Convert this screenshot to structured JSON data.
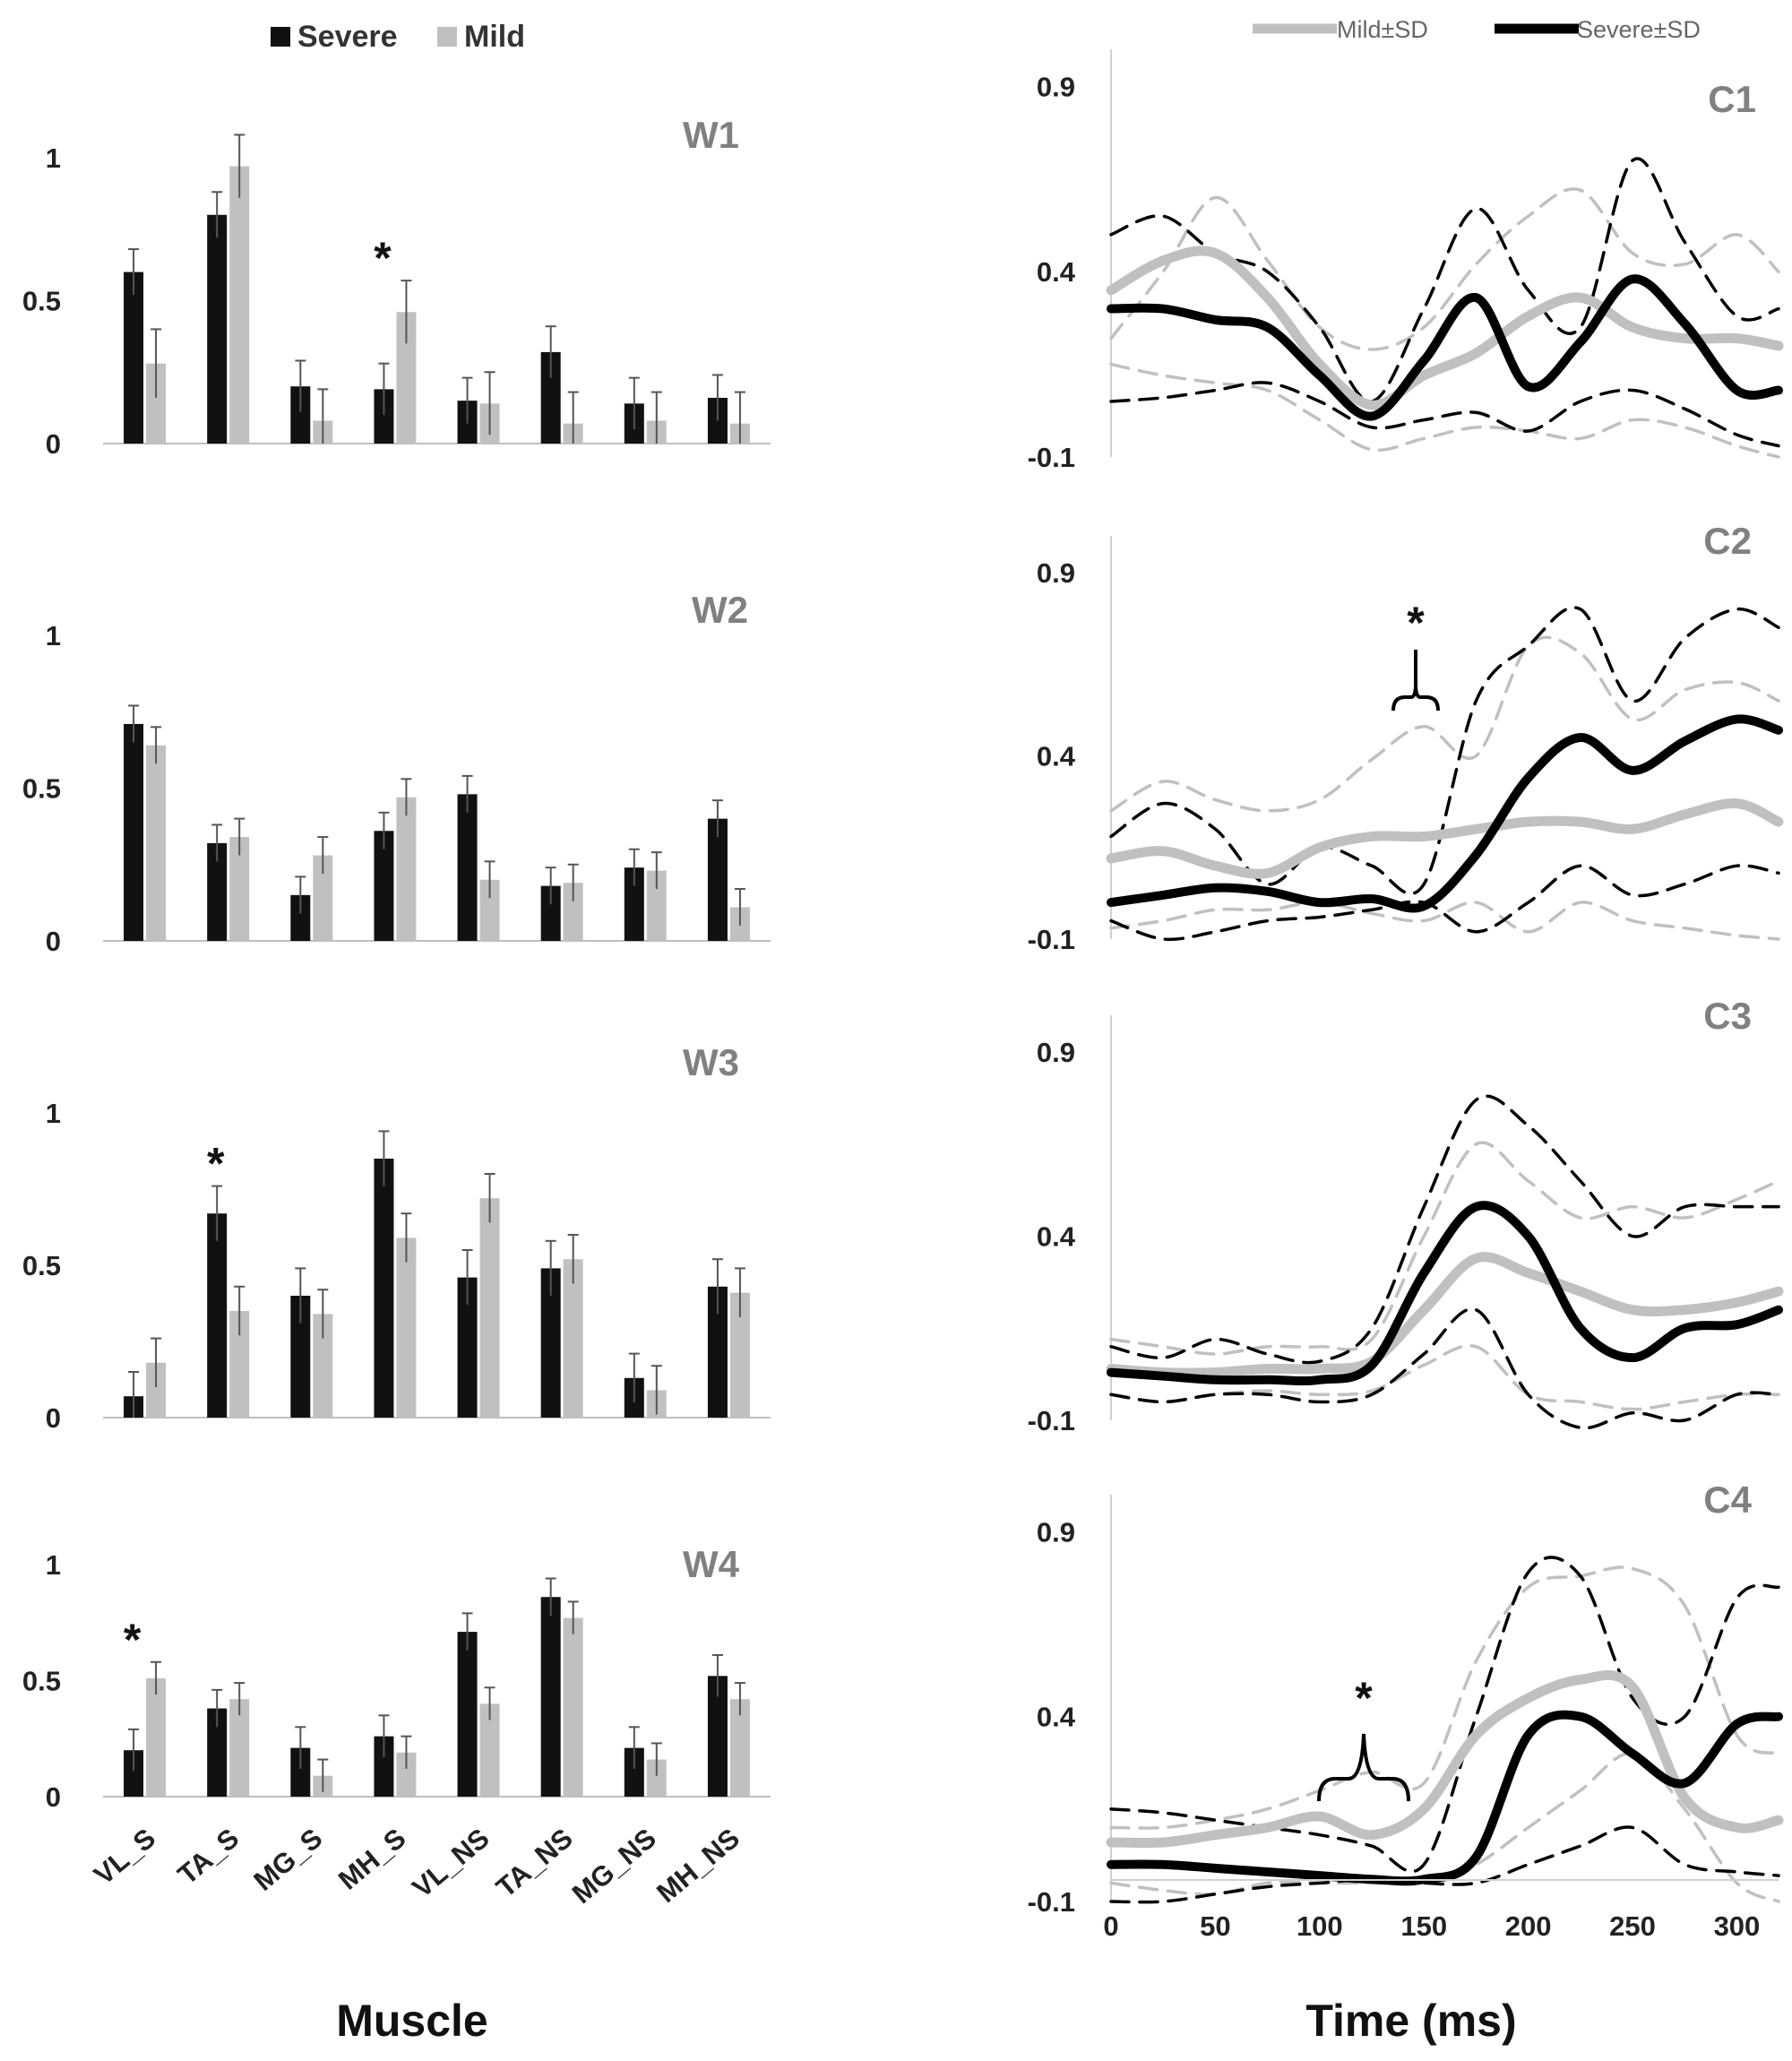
{
  "chart_data": [
    {
      "type": "bar",
      "panel": "W1",
      "categories": [
        "VL_S",
        "TA_S",
        "MG_S",
        "MH_S",
        "VL_NS",
        "TA_NS",
        "MG_NS",
        "MH_NS"
      ],
      "series": [
        {
          "name": "Severe",
          "color": "#111111",
          "values": [
            0.6,
            0.8,
            0.2,
            0.19,
            0.15,
            0.32,
            0.14,
            0.16
          ],
          "errors": [
            0.08,
            0.08,
            0.09,
            0.09,
            0.08,
            0.09,
            0.09,
            0.08
          ]
        },
        {
          "name": "Mild",
          "color": "#c0c0c0",
          "values": [
            0.28,
            0.97,
            0.08,
            0.46,
            0.14,
            0.07,
            0.08,
            0.07
          ],
          "errors": [
            0.12,
            0.11,
            0.11,
            0.11,
            0.11,
            0.11,
            0.1,
            0.11
          ]
        }
      ],
      "significant": [
        "MH_S"
      ],
      "ylim": [
        0,
        1.05
      ],
      "yticks": [
        0,
        0.5,
        1
      ],
      "ytick_labels": [
        "0",
        "0.5",
        "1"
      ]
    },
    {
      "type": "bar",
      "panel": "W2",
      "categories": [
        "VL_S",
        "TA_S",
        "MG_S",
        "MH_S",
        "VL_NS",
        "TA_NS",
        "MG_NS",
        "MH_NS"
      ],
      "series": [
        {
          "name": "Severe",
          "color": "#111111",
          "values": [
            0.71,
            0.32,
            0.15,
            0.36,
            0.48,
            0.18,
            0.24,
            0.4
          ],
          "errors": [
            0.06,
            0.06,
            0.06,
            0.06,
            0.06,
            0.06,
            0.06,
            0.06
          ]
        },
        {
          "name": "Mild",
          "color": "#c0c0c0",
          "values": [
            0.64,
            0.34,
            0.28,
            0.47,
            0.2,
            0.19,
            0.23,
            0.11
          ],
          "errors": [
            0.06,
            0.06,
            0.06,
            0.06,
            0.06,
            0.06,
            0.06,
            0.06
          ]
        }
      ],
      "significant": [],
      "ylim": [
        0,
        1.05
      ],
      "yticks": [
        0,
        0.5,
        1
      ],
      "ytick_labels": [
        "0",
        "0.5",
        "1"
      ]
    },
    {
      "type": "bar",
      "panel": "W3",
      "categories": [
        "VL_S",
        "TA_S",
        "MG_S",
        "MH_S",
        "VL_NS",
        "TA_NS",
        "MG_NS",
        "MH_NS"
      ],
      "series": [
        {
          "name": "Severe",
          "color": "#111111",
          "values": [
            0.07,
            0.67,
            0.4,
            0.85,
            0.46,
            0.49,
            0.13,
            0.43
          ],
          "errors": [
            0.08,
            0.09,
            0.09,
            0.09,
            0.09,
            0.09,
            0.08,
            0.09
          ]
        },
        {
          "name": "Mild",
          "color": "#c0c0c0",
          "values": [
            0.18,
            0.35,
            0.34,
            0.59,
            0.72,
            0.52,
            0.09,
            0.41
          ],
          "errors": [
            0.08,
            0.08,
            0.08,
            0.08,
            0.08,
            0.08,
            0.08,
            0.08
          ]
        }
      ],
      "significant": [
        "TA_S"
      ],
      "ylim": [
        0,
        1.05
      ],
      "yticks": [
        0,
        0.5,
        1
      ],
      "ytick_labels": [
        "0",
        "0.5",
        "1"
      ]
    },
    {
      "type": "bar",
      "panel": "W4",
      "categories": [
        "VL_S",
        "TA_S",
        "MG_S",
        "MH_S",
        "VL_NS",
        "TA_NS",
        "MG_NS",
        "MH_NS"
      ],
      "series": [
        {
          "name": "Severe",
          "color": "#111111",
          "values": [
            0.2,
            0.38,
            0.21,
            0.26,
            0.71,
            0.86,
            0.21,
            0.52
          ],
          "errors": [
            0.09,
            0.08,
            0.09,
            0.09,
            0.08,
            0.08,
            0.09,
            0.09
          ]
        },
        {
          "name": "Mild",
          "color": "#c0c0c0",
          "values": [
            0.51,
            0.42,
            0.09,
            0.19,
            0.4,
            0.77,
            0.16,
            0.42
          ],
          "errors": [
            0.07,
            0.07,
            0.07,
            0.07,
            0.07,
            0.07,
            0.07,
            0.07
          ]
        }
      ],
      "significant": [
        "VL_S"
      ],
      "ylim": [
        0,
        1.05
      ],
      "yticks": [
        0,
        0.5,
        1
      ],
      "ytick_labels": [
        "0",
        "0.5",
        "1"
      ]
    },
    {
      "type": "line",
      "panel": "C1",
      "x": [
        0,
        25,
        50,
        75,
        100,
        125,
        150,
        175,
        200,
        225,
        250,
        275,
        300,
        320
      ],
      "series": [
        {
          "name": "Mild±SD",
          "color": "#c0c0c0",
          "style": "solid",
          "y": [
            0.35,
            0.43,
            0.45,
            0.33,
            0.15,
            0.04,
            0.12,
            0.18,
            0.28,
            0.33,
            0.25,
            0.22,
            0.22,
            0.2
          ]
        },
        {
          "name": "Severe±SD",
          "color": "#000000",
          "style": "solid",
          "y": [
            0.3,
            0.3,
            0.27,
            0.25,
            0.12,
            0.01,
            0.16,
            0.33,
            0.09,
            0.21,
            0.38,
            0.26,
            0.08,
            0.08
          ]
        },
        {
          "color": "#c0c0c0",
          "style": "dashed",
          "y": [
            0.22,
            0.4,
            0.6,
            0.43,
            0.25,
            0.19,
            0.25,
            0.42,
            0.55,
            0.62,
            0.45,
            0.42,
            0.5,
            0.4
          ]
        },
        {
          "color": "#c0c0c0",
          "style": "dashed",
          "y": [
            0.15,
            0.12,
            0.1,
            0.08,
            0.0,
            -0.08,
            -0.05,
            -0.02,
            -0.03,
            -0.05,
            0.0,
            -0.02,
            -0.07,
            -0.1
          ]
        },
        {
          "color": "#000000",
          "style": "dashed",
          "y": [
            0.5,
            0.55,
            0.45,
            0.4,
            0.25,
            0.05,
            0.3,
            0.57,
            0.35,
            0.25,
            0.7,
            0.48,
            0.28,
            0.3
          ]
        },
        {
          "color": "#000000",
          "style": "dashed",
          "y": [
            0.05,
            0.06,
            0.08,
            0.1,
            0.05,
            -0.02,
            0.0,
            0.02,
            -0.03,
            0.05,
            0.08,
            0.03,
            -0.04,
            -0.07
          ]
        }
      ],
      "ylim": [
        -0.1,
        1.0
      ],
      "yticks": [
        -0.1,
        0.4,
        0.9
      ],
      "ytick_labels": [
        "-0.1",
        "0.4",
        "0.9"
      ],
      "xlim": [
        0,
        320
      ]
    },
    {
      "type": "line",
      "panel": "C2",
      "x": [
        0,
        25,
        50,
        75,
        100,
        125,
        150,
        175,
        200,
        225,
        250,
        275,
        300,
        320
      ],
      "series": [
        {
          "name": "Mild±SD",
          "color": "#c0c0c0",
          "style": "solid",
          "y": [
            0.12,
            0.14,
            0.1,
            0.08,
            0.15,
            0.18,
            0.18,
            0.2,
            0.22,
            0.22,
            0.2,
            0.24,
            0.27,
            0.22
          ]
        },
        {
          "name": "Severe±SD",
          "color": "#000000",
          "style": "solid",
          "y": [
            0.0,
            0.02,
            0.04,
            0.03,
            0.0,
            0.01,
            -0.01,
            0.13,
            0.34,
            0.45,
            0.36,
            0.44,
            0.5,
            0.47
          ]
        },
        {
          "color": "#c0c0c0",
          "style": "dashed",
          "y": [
            0.25,
            0.33,
            0.28,
            0.25,
            0.28,
            0.39,
            0.48,
            0.4,
            0.7,
            0.68,
            0.5,
            0.58,
            0.6,
            0.55
          ]
        },
        {
          "color": "#c0c0c0",
          "style": "dashed",
          "y": [
            -0.07,
            -0.05,
            -0.02,
            -0.02,
            0.0,
            -0.03,
            -0.05,
            0.0,
            -0.08,
            0.0,
            -0.05,
            -0.07,
            -0.09,
            -0.1
          ]
        },
        {
          "color": "#000000",
          "style": "dashed",
          "y": [
            0.18,
            0.27,
            0.2,
            0.05,
            0.15,
            0.1,
            0.05,
            0.55,
            0.7,
            0.8,
            0.55,
            0.72,
            0.8,
            0.75
          ]
        },
        {
          "color": "#000000",
          "style": "dashed",
          "y": [
            -0.05,
            -0.1,
            -0.08,
            -0.05,
            -0.04,
            -0.02,
            0.0,
            -0.08,
            0.0,
            0.1,
            0.02,
            0.05,
            0.1,
            0.08
          ]
        }
      ],
      "ylim": [
        -0.1,
        1.0
      ],
      "yticks": [
        -0.1,
        0.4,
        0.9
      ],
      "ytick_labels": [
        "-0.1",
        "0.4",
        "0.9"
      ],
      "xlim": [
        0,
        320
      ],
      "annotation": "*"
    },
    {
      "type": "line",
      "panel": "C3",
      "x": [
        0,
        25,
        50,
        75,
        100,
        125,
        150,
        175,
        200,
        225,
        250,
        275,
        300,
        320
      ],
      "series": [
        {
          "name": "Mild±SD",
          "color": "#c0c0c0",
          "style": "solid",
          "y": [
            0.04,
            0.03,
            0.03,
            0.04,
            0.04,
            0.06,
            0.2,
            0.34,
            0.3,
            0.25,
            0.2,
            0.2,
            0.22,
            0.25
          ]
        },
        {
          "name": "Severe±SD",
          "color": "#000000",
          "style": "solid",
          "y": [
            0.03,
            0.02,
            0.01,
            0.01,
            0.01,
            0.05,
            0.3,
            0.48,
            0.4,
            0.15,
            0.07,
            0.15,
            0.16,
            0.2
          ]
        },
        {
          "color": "#c0c0c0",
          "style": "dashed",
          "y": [
            0.12,
            0.1,
            0.08,
            0.1,
            0.1,
            0.12,
            0.4,
            0.65,
            0.55,
            0.45,
            0.48,
            0.45,
            0.5,
            0.55
          ]
        },
        {
          "color": "#c0c0c0",
          "style": "dashed",
          "y": [
            -0.03,
            -0.05,
            -0.03,
            -0.02,
            -0.03,
            -0.02,
            0.05,
            0.1,
            -0.03,
            -0.05,
            -0.07,
            -0.05,
            -0.03,
            -0.03
          ]
        },
        {
          "color": "#000000",
          "style": "dashed",
          "y": [
            0.1,
            0.07,
            0.12,
            0.08,
            0.06,
            0.15,
            0.48,
            0.77,
            0.7,
            0.55,
            0.4,
            0.48,
            0.48,
            0.48
          ]
        },
        {
          "color": "#000000",
          "style": "dashed",
          "y": [
            -0.03,
            -0.05,
            -0.03,
            -0.03,
            -0.05,
            -0.03,
            0.08,
            0.2,
            -0.03,
            -0.12,
            -0.08,
            -0.1,
            -0.03,
            -0.03
          ]
        }
      ],
      "ylim": [
        -0.1,
        1.0
      ],
      "yticks": [
        -0.1,
        0.4,
        0.9
      ],
      "ytick_labels": [
        "-0.1",
        "0.4",
        "0.9"
      ],
      "xlim": [
        0,
        320
      ]
    },
    {
      "type": "line",
      "panel": "C4",
      "x": [
        0,
        25,
        50,
        75,
        100,
        125,
        150,
        175,
        200,
        225,
        250,
        275,
        300,
        320
      ],
      "series": [
        {
          "name": "Mild±SD",
          "color": "#c0c0c0",
          "style": "solid",
          "y": [
            0.06,
            0.06,
            0.08,
            0.1,
            0.13,
            0.08,
            0.15,
            0.35,
            0.45,
            0.5,
            0.48,
            0.18,
            0.1,
            0.12
          ]
        },
        {
          "name": "Severe±SD",
          "color": "#000000",
          "style": "solid",
          "y": [
            0.0,
            0.0,
            -0.01,
            -0.02,
            -0.03,
            -0.04,
            -0.04,
            0.02,
            0.35,
            0.4,
            0.3,
            0.22,
            0.38,
            0.4
          ]
        },
        {
          "color": "#c0c0c0",
          "style": "dashed",
          "y": [
            0.1,
            0.1,
            0.12,
            0.15,
            0.2,
            0.25,
            0.22,
            0.55,
            0.75,
            0.78,
            0.8,
            0.7,
            0.35,
            0.3
          ]
        },
        {
          "color": "#c0c0c0",
          "style": "dashed",
          "y": [
            -0.05,
            -0.07,
            -0.08,
            -0.05,
            -0.05,
            -0.05,
            -0.05,
            0.0,
            0.1,
            0.2,
            0.3,
            0.15,
            -0.05,
            -0.1
          ]
        },
        {
          "color": "#000000",
          "style": "dashed",
          "y": [
            0.15,
            0.14,
            0.12,
            0.1,
            0.08,
            0.05,
            0.0,
            0.4,
            0.79,
            0.78,
            0.45,
            0.4,
            0.72,
            0.75
          ]
        },
        {
          "color": "#000000",
          "style": "dashed",
          "y": [
            -0.1,
            -0.1,
            -0.08,
            -0.06,
            -0.05,
            -0.04,
            -0.05,
            -0.05,
            0.0,
            0.05,
            0.1,
            0.0,
            -0.02,
            -0.03
          ]
        }
      ],
      "ylim": [
        -0.1,
        1.0
      ],
      "yticks": [
        -0.1,
        0.4,
        0.9
      ],
      "ytick_labels": [
        "-0.1",
        "0.4",
        "0.9"
      ],
      "xlim": [
        0,
        320
      ],
      "xticks": [
        0,
        50,
        100,
        150,
        200,
        250,
        300
      ],
      "annotation": "*"
    }
  ],
  "left_legend": {
    "items": [
      {
        "name": "Severe",
        "color": "#111111"
      },
      {
        "name": "Mild",
        "color": "#c0c0c0"
      }
    ]
  },
  "right_legend": {
    "items": [
      {
        "name": "Mild±SD",
        "color": "#c0c0c0"
      },
      {
        "name": "Severe±SD",
        "color": "#000000"
      }
    ]
  },
  "left_xlabel": "Muscle",
  "right_xlabel": "Time (ms)",
  "star": "*"
}
